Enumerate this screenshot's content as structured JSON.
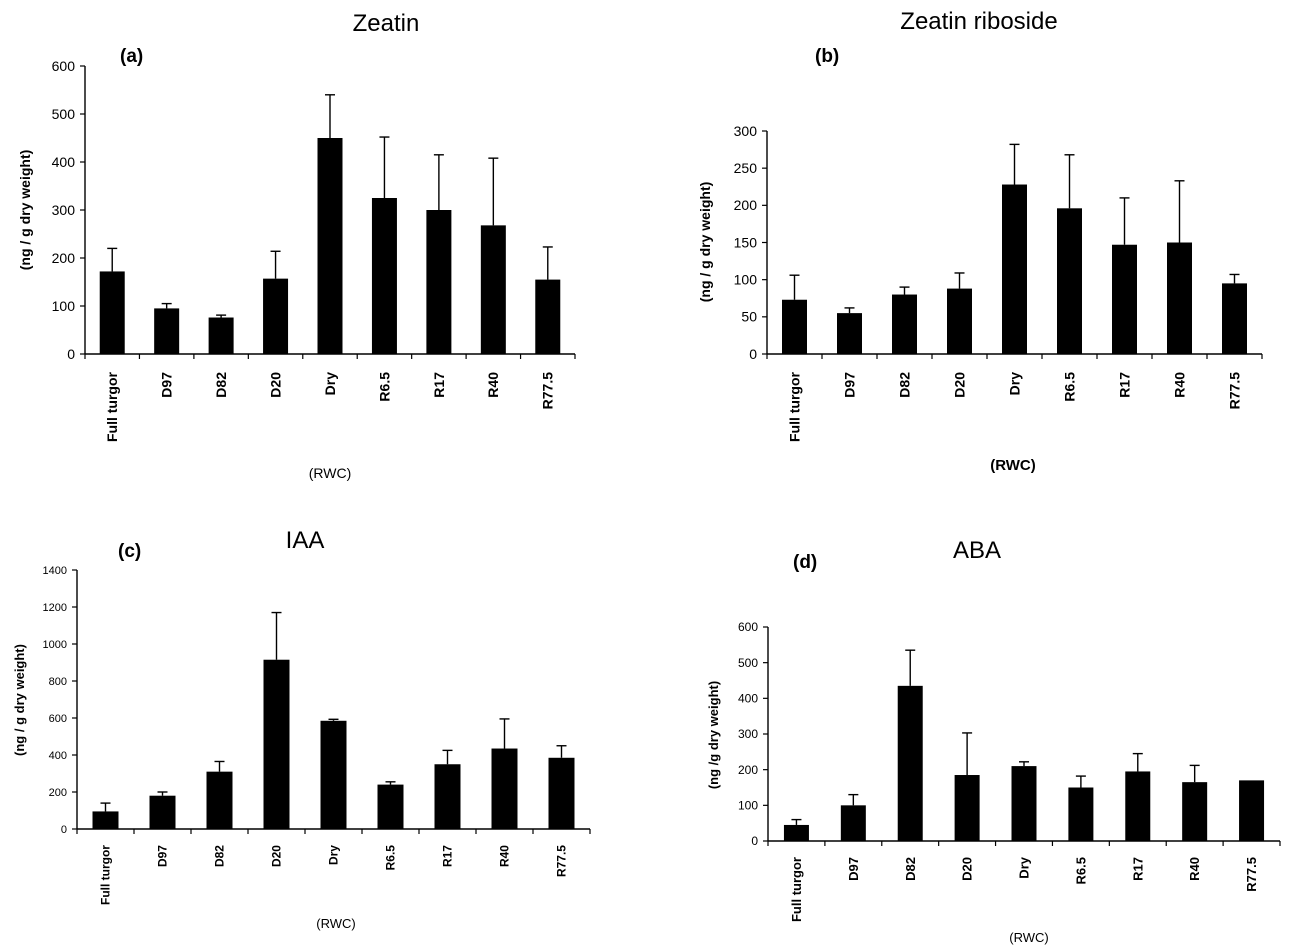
{
  "figure": {
    "bar_color": "#000000",
    "axis_color": "#000000"
  },
  "chart_data": [
    {
      "type": "bar",
      "panel": "(a)",
      "title": "Zeatin",
      "xlabel": "(RWC)",
      "ylabel": "(ng / g dry weight)",
      "categories": [
        "Full turgor",
        "D97",
        "D82",
        "D20",
        "Dry",
        "R6.5",
        "R17",
        "R40",
        "R77.5"
      ],
      "values": [
        172,
        95,
        76,
        157,
        450,
        325,
        300,
        268,
        155
      ],
      "errors": [
        48,
        10,
        5,
        57,
        90,
        127,
        115,
        140,
        68
      ],
      "ylim": [
        0,
        600
      ],
      "yticks": [
        0,
        100,
        200,
        300,
        400,
        500,
        600
      ],
      "grid": false,
      "legend": "none"
    },
    {
      "type": "bar",
      "panel": "(b)",
      "title": "Zeatin riboside",
      "xlabel": "(RWC)",
      "ylabel": "(ng / g dry weight)",
      "categories": [
        "Full turgor",
        "D97",
        "D82",
        "D20",
        "Dry",
        "R6.5",
        "R17",
        "R40",
        "R77.5"
      ],
      "values": [
        73,
        55,
        80,
        88,
        228,
        196,
        147,
        150,
        95
      ],
      "errors": [
        33,
        7,
        10,
        21,
        54,
        72,
        63,
        83,
        12
      ],
      "ylim": [
        0,
        300
      ],
      "yticks": [
        0,
        50,
        100,
        150,
        200,
        250,
        300
      ],
      "grid": false,
      "legend": "none"
    },
    {
      "type": "bar",
      "panel": "(c)",
      "title": "IAA",
      "xlabel": "(RWC)",
      "ylabel": "(ng / g dry weight)",
      "categories": [
        "Full turgor",
        "D97",
        "D82",
        "D20",
        "Dry",
        "R6.5",
        "R17",
        "R40",
        "R77.5"
      ],
      "values": [
        95,
        180,
        310,
        915,
        585,
        240,
        350,
        435,
        385
      ],
      "errors": [
        45,
        20,
        55,
        255,
        8,
        15,
        75,
        160,
        65
      ],
      "ylim": [
        0,
        1400
      ],
      "yticks": [
        0,
        200,
        400,
        600,
        800,
        1000,
        1200,
        1400
      ],
      "grid": false,
      "legend": "none"
    },
    {
      "type": "bar",
      "panel": "(d)",
      "title": "ABA",
      "xlabel": "(RWC)",
      "ylabel": "(ng /g dry weight)",
      "categories": [
        "Full turgor",
        "D97",
        "D82",
        "D20",
        "Dry",
        "R6.5",
        "R17",
        "R40",
        "R77.5"
      ],
      "values": [
        45,
        100,
        435,
        185,
        210,
        150,
        195,
        165,
        170
      ],
      "errors": [
        15,
        30,
        100,
        118,
        12,
        32,
        50,
        47,
        0
      ],
      "ylim": [
        0,
        600
      ],
      "yticks": [
        0,
        100,
        200,
        300,
        400,
        500,
        600
      ],
      "grid": false,
      "legend": "none"
    }
  ]
}
